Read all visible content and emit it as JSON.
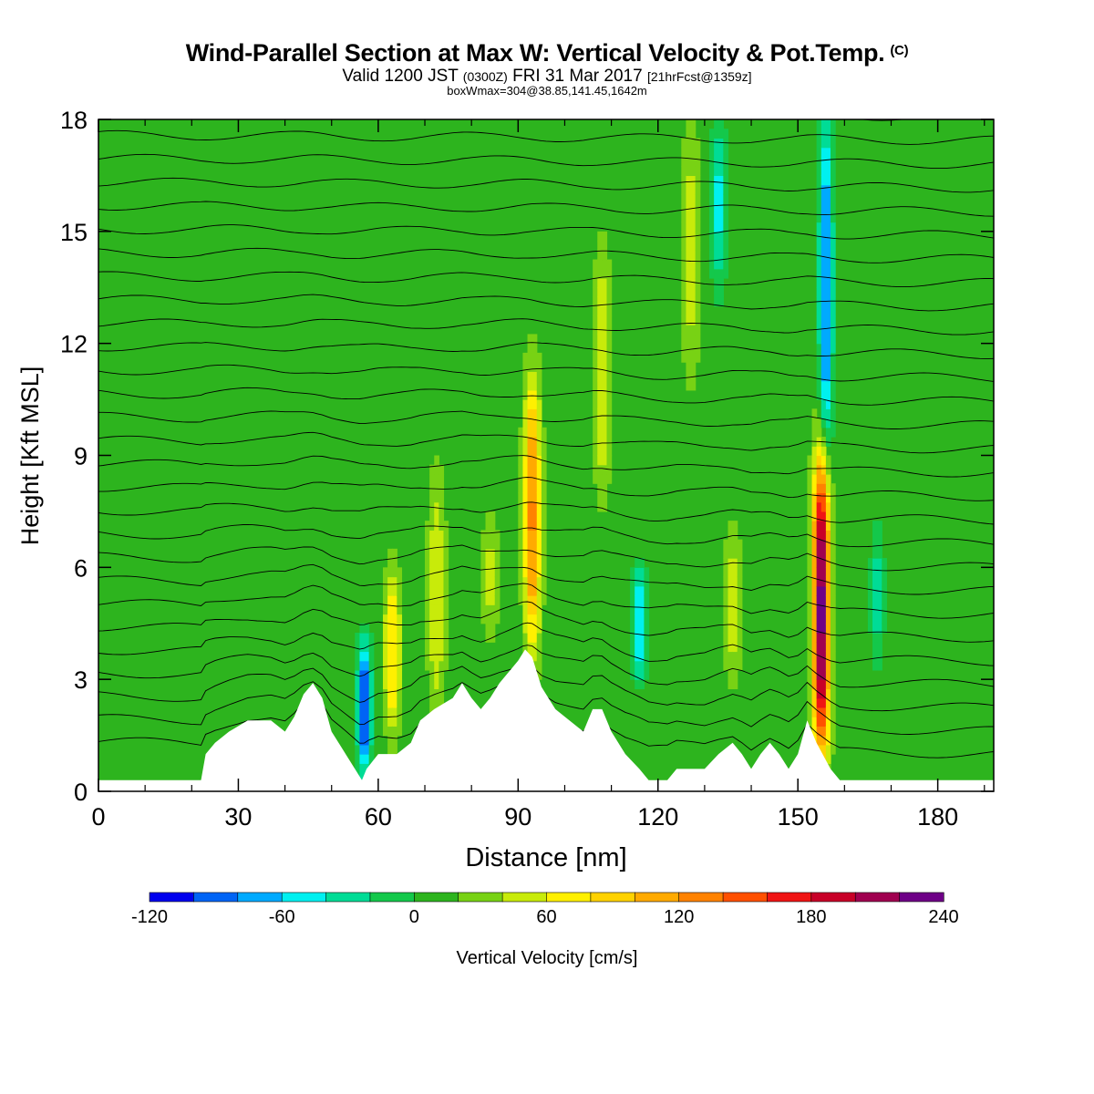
{
  "header": {
    "title": "Wind-Parallel Section at Max W: Vertical Velocity & Pot.Temp.",
    "copyright": "(C)",
    "valid_prefix": "Valid 1200 JST",
    "valid_z": "(0300Z)",
    "valid_date": "FRI 31 Mar 2017",
    "forecast": "[21hrFcst@1359z]",
    "box_info": "boxWmax=304@38.85,141.45,1642m"
  },
  "chart_data": {
    "type": "heatmap",
    "xlabel": "Distance [nm]",
    "ylabel": "Height [Kft MSL]",
    "xlim": [
      0,
      192
    ],
    "ylim": [
      0,
      18
    ],
    "x_ticks": [
      "0",
      "30",
      "60",
      "90",
      "120",
      "150",
      "180"
    ],
    "y_ticks": [
      "0",
      "3",
      "6",
      "9",
      "12",
      "15",
      "18"
    ],
    "colorbar": {
      "label": "Vertical Velocity [cm/s]",
      "ticks": [
        "-120",
        "-60",
        "0",
        "60",
        "120",
        "180",
        "240"
      ],
      "bounds": [
        -120,
        -100,
        -80,
        -60,
        -40,
        -20,
        0,
        20,
        40,
        60,
        80,
        100,
        120,
        140,
        160,
        180,
        200,
        220,
        240
      ],
      "colors": [
        "#0000ee",
        "#0064f5",
        "#00aaff",
        "#00f0f0",
        "#00dc96",
        "#14c84b",
        "#2db41e",
        "#78d214",
        "#c8eb0a",
        "#fff000",
        "#ffd200",
        "#ffaa00",
        "#ff8200",
        "#ff5000",
        "#f01414",
        "#c80028",
        "#a00050",
        "#6e0087"
      ]
    },
    "background_w": 10,
    "updrafts": [
      {
        "x": 155,
        "z_min": 1.0,
        "z_max": 9.0,
        "w_max": 240
      },
      {
        "x": 93,
        "z_min": 3.8,
        "z_max": 11.0,
        "w_max": 130
      },
      {
        "x": 63,
        "z_min": 1.5,
        "z_max": 6.0,
        "w_max": 80
      },
      {
        "x": 72.5,
        "z_min": 2.0,
        "z_max": 8.5,
        "w_max": 60
      },
      {
        "x": 108,
        "z_min": 8.0,
        "z_max": 14.5,
        "w_max": 60
      },
      {
        "x": 136,
        "z_min": 3.0,
        "z_max": 7.0,
        "w_max": 50
      },
      {
        "x": 84,
        "z_min": 4.0,
        "z_max": 7.5,
        "w_max": 45
      },
      {
        "x": 127,
        "z_min": 11.0,
        "z_max": 18.0,
        "w_max": 50
      }
    ],
    "downdrafts": [
      {
        "x": 57,
        "z_min": 0.5,
        "z_max": 4.0,
        "w_min": -110
      },
      {
        "x": 156,
        "z_min": 9.0,
        "z_max": 18.0,
        "w_min": -90
      },
      {
        "x": 133,
        "z_min": 13.5,
        "z_max": 18.0,
        "w_min": -50
      },
      {
        "x": 116,
        "z_min": 3.0,
        "z_max": 6.0,
        "w_min": -65
      },
      {
        "x": 167,
        "z_min": 3.5,
        "z_max": 7.0,
        "w_min": -30
      }
    ],
    "terrain": [
      [
        0,
        0.3
      ],
      [
        22,
        0.3
      ],
      [
        23,
        1.0
      ],
      [
        25,
        1.3
      ],
      [
        28,
        1.6
      ],
      [
        32,
        1.9
      ],
      [
        37,
        1.9
      ],
      [
        40,
        1.6
      ],
      [
        42,
        2.0
      ],
      [
        44,
        2.6
      ],
      [
        46,
        2.9
      ],
      [
        48,
        2.5
      ],
      [
        50,
        1.6
      ],
      [
        52,
        1.2
      ],
      [
        55,
        0.6
      ],
      [
        56.5,
        0.3
      ],
      [
        57.5,
        0.6
      ],
      [
        60,
        1.0
      ],
      [
        64,
        1.0
      ],
      [
        67,
        1.3
      ],
      [
        69,
        1.9
      ],
      [
        72,
        2.2
      ],
      [
        76,
        2.5
      ],
      [
        78,
        2.9
      ],
      [
        80,
        2.5
      ],
      [
        82,
        2.2
      ],
      [
        84,
        2.5
      ],
      [
        86,
        2.9
      ],
      [
        88,
        3.2
      ],
      [
        90,
        3.5
      ],
      [
        91.5,
        3.8
      ],
      [
        93,
        3.6
      ],
      [
        95,
        2.8
      ],
      [
        98,
        2.2
      ],
      [
        101,
        1.9
      ],
      [
        104,
        1.6
      ],
      [
        106,
        2.2
      ],
      [
        108,
        2.2
      ],
      [
        110,
        1.6
      ],
      [
        113,
        1.0
      ],
      [
        116,
        0.6
      ],
      [
        118,
        0.3
      ],
      [
        122,
        0.3
      ],
      [
        124,
        0.6
      ],
      [
        130,
        0.6
      ],
      [
        133,
        1.0
      ],
      [
        136,
        1.3
      ],
      [
        138,
        1.0
      ],
      [
        140,
        0.6
      ],
      [
        142,
        1.0
      ],
      [
        144,
        1.3
      ],
      [
        146,
        1.0
      ],
      [
        148,
        0.6
      ],
      [
        150,
        1.0
      ],
      [
        152,
        1.9
      ],
      [
        154,
        1.3
      ],
      [
        157,
        0.6
      ],
      [
        159,
        0.3
      ],
      [
        192,
        0.3
      ]
    ],
    "theta_contours": {
      "count": 30,
      "z_start": 1.2,
      "z_step": 0.63
    }
  }
}
